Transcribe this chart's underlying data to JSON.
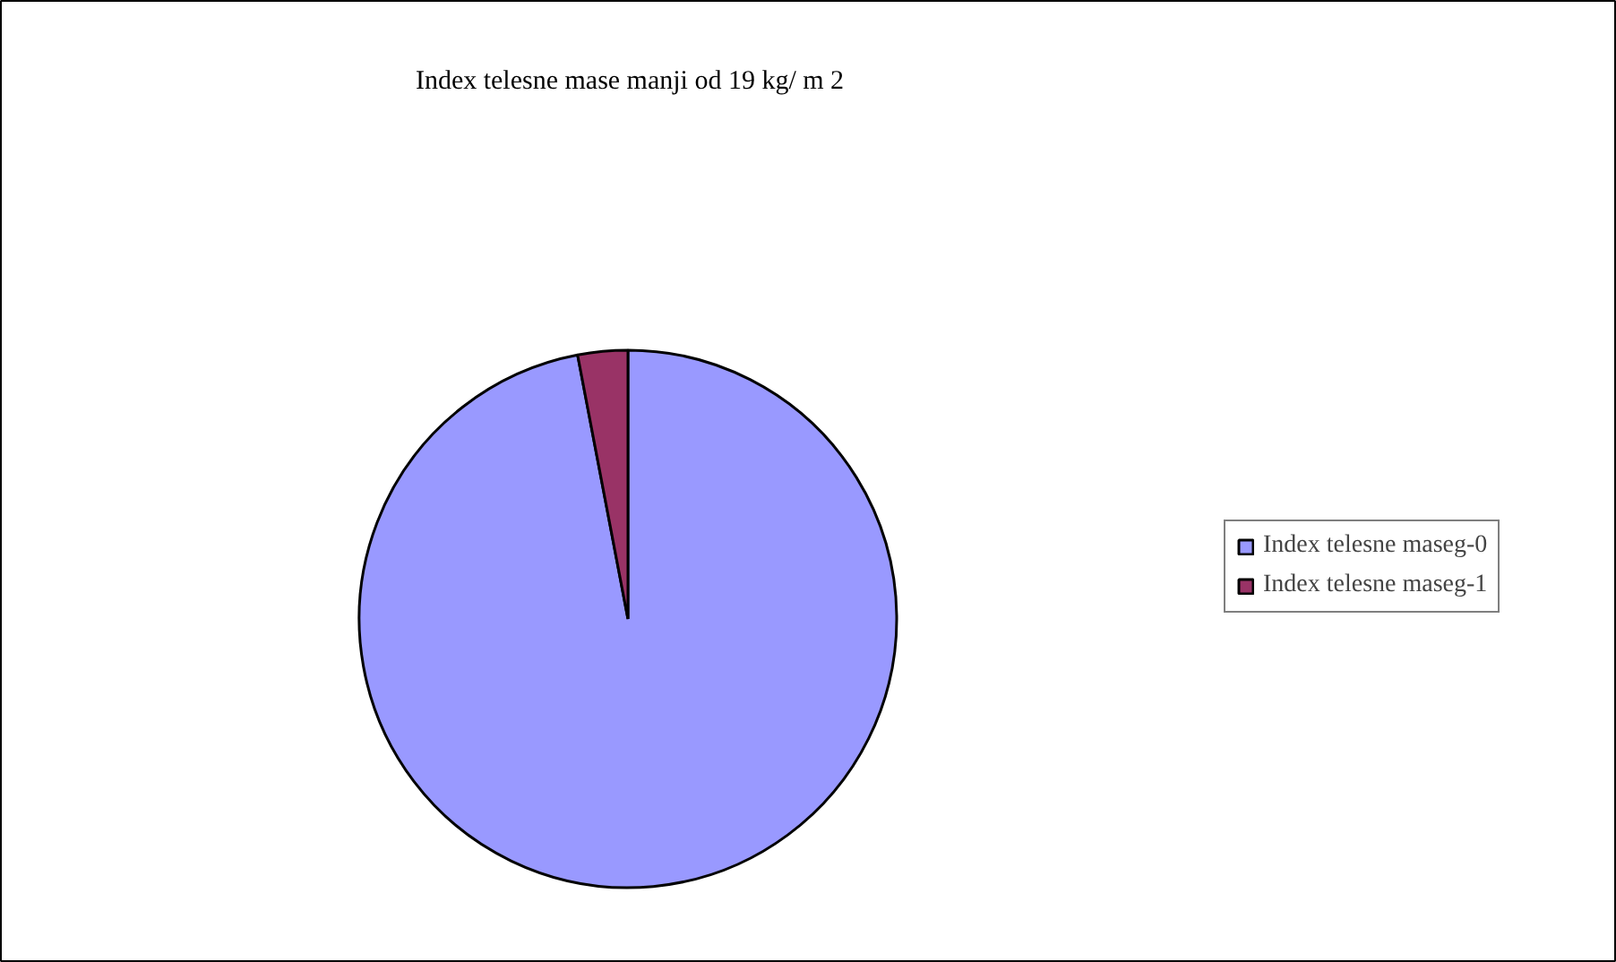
{
  "chart_data": {
    "type": "pie",
    "title": "Index telesne mase manji od 19 kg/ m 2",
    "categories": [
      "Index telesne maseg-0",
      "Index telesne maseg-1"
    ],
    "values": [
      97,
      3
    ],
    "colors": [
      "#9999ff",
      "#993366"
    ],
    "legend": "right"
  }
}
